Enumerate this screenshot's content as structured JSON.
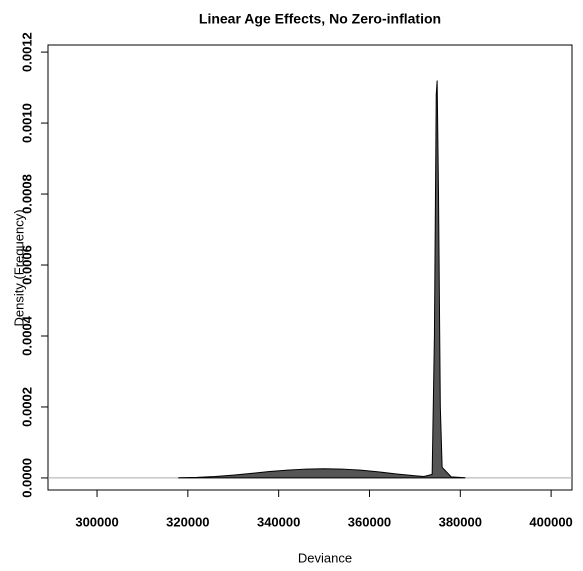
{
  "chart_data": {
    "type": "area",
    "title": "Linear Age Effects, No Zero-inflation",
    "xlabel": "Deviance",
    "ylabel": "Density (Frequency)",
    "xlim": [
      289200,
      404600
    ],
    "ylim": [
      -3.4e-05,
      0.00122
    ],
    "xticks": [
      300000,
      320000,
      340000,
      360000,
      380000,
      400000
    ],
    "yticks": [
      {
        "value": 0,
        "label": "0.0000"
      },
      {
        "value": 0.0002,
        "label": "0.0002"
      },
      {
        "value": 0.0004,
        "label": "0.0004"
      },
      {
        "value": 0.0006,
        "label": "0.0006"
      },
      {
        "value": 0.0008,
        "label": "0.0008"
      },
      {
        "value": 0.001,
        "label": "0.0010"
      },
      {
        "value": 0.0012,
        "label": "0.0012"
      }
    ],
    "x": [
      318000,
      322000,
      326000,
      330000,
      334000,
      338000,
      342000,
      346000,
      350000,
      354000,
      358000,
      362000,
      366000,
      370000,
      372000,
      373800,
      374300,
      374700,
      374900,
      375200,
      375600,
      376000,
      378000,
      381000
    ],
    "series": [
      {
        "color": "#555555",
        "values": [
          5e-07,
          1.5e-06,
          4e-06,
          8e-06,
          1.3e-05,
          1.8e-05,
          2.2e-05,
          2.5e-05,
          2.6e-05,
          2.5e-05,
          2.2e-05,
          1.7e-05,
          1.1e-05,
          6e-06,
          4e-06,
          1e-05,
          0.0004,
          0.00108,
          0.00112,
          0.0008,
          0.0002,
          3e-05,
          3e-06,
          5e-07
        ]
      }
    ]
  }
}
